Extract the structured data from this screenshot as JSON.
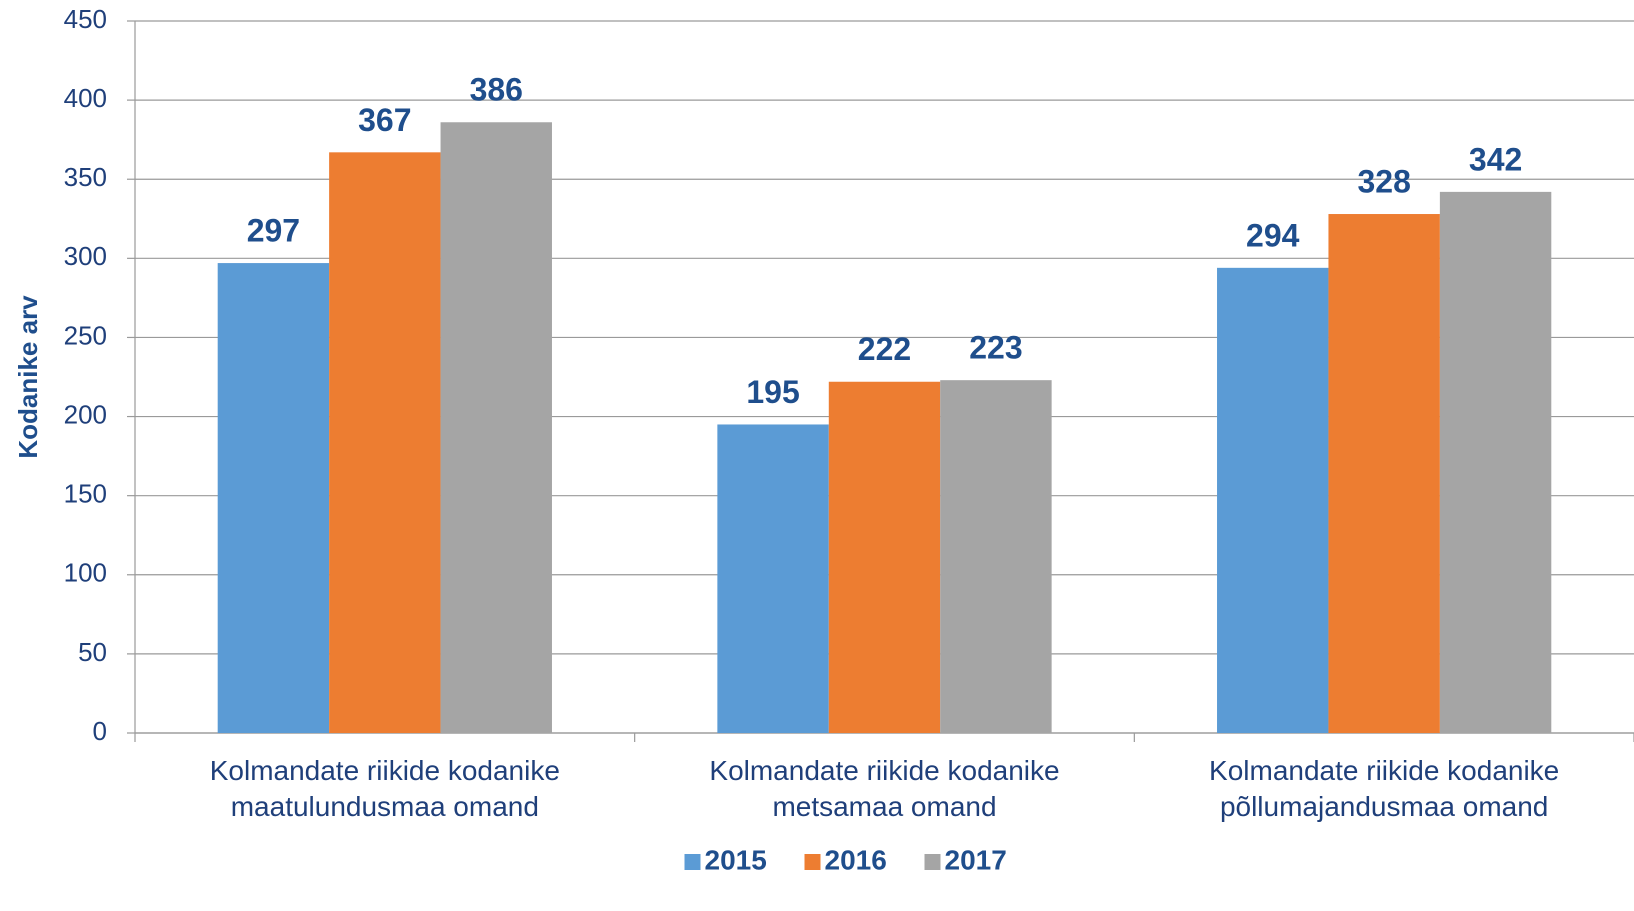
{
  "chart_data": {
    "type": "bar",
    "y_label": "Kodanike arv",
    "categories": [
      "Kolmandate riikide kodanike\nmaatulundusmaa omand",
      "Kolmandate riikide kodanike\nmetsamaa omand",
      "Kolmandate riikide kodanike\npõllumajandusmaa omand"
    ],
    "series": [
      {
        "name": "2015",
        "color": "#5b9bd5",
        "values": [
          297,
          195,
          294
        ]
      },
      {
        "name": "2016",
        "color": "#ed7d31",
        "values": [
          367,
          222,
          328
        ]
      },
      {
        "name": "2017",
        "color": "#a5a5a5",
        "values": [
          386,
          223,
          342
        ]
      }
    ],
    "ylim": [
      0,
      450
    ],
    "yticks": [
      0,
      50,
      100,
      150,
      200,
      250,
      300,
      350,
      400,
      450
    ],
    "grid": true,
    "legend": "bottom"
  }
}
